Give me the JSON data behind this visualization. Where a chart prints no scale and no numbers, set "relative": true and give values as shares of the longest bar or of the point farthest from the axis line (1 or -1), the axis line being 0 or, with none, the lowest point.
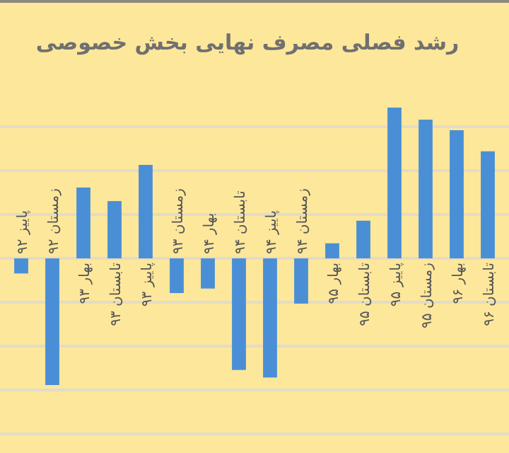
{
  "chart_data": {
    "type": "bar",
    "title": "رشد فصلی مصرف نهایی بخش خصوصی",
    "categories": [
      "پاییز ۹۲",
      "زمستان ۹۲",
      "بهار ۹۳",
      "تابستان ۹۳",
      "پاییز ۹۳",
      "زمستان ۹۳",
      "بهار ۹۴",
      "تابستان ۹۴",
      "پاییز ۹۴",
      "زمستان ۹۴",
      "بهار ۹۵",
      "تابستان ۹۵",
      "پاییز ۹۵",
      "زمستان ۹۵",
      "بهار ۹۶",
      "تابستان ۹۶"
    ],
    "values": [
      -0.1,
      -0.84,
      0.47,
      0.38,
      0.62,
      -0.23,
      -0.2,
      -0.74,
      -0.79,
      -0.3,
      0.1,
      0.25,
      1,
      0.92,
      0.85,
      0.71
    ],
    "color": "#4a8fd6",
    "relative": true,
    "grid": true
  }
}
